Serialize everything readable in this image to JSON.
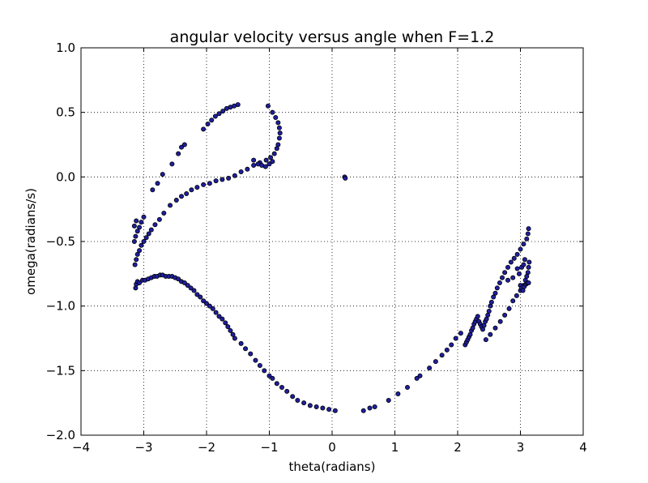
{
  "chart_data": {
    "type": "scatter",
    "title": "angular velocity versus angle when F=1.2",
    "xlabel": "theta(radians)",
    "ylabel": "omega(radians/s)",
    "xlim": [
      -4,
      4
    ],
    "ylim": [
      -2.0,
      1.0
    ],
    "xticks": [
      -4,
      -3,
      -2,
      -1,
      0,
      1,
      2,
      3,
      4
    ],
    "xtick_labels": [
      "−4",
      "−3",
      "−2",
      "−1",
      "0",
      "1",
      "2",
      "3",
      "4"
    ],
    "yticks": [
      -2.0,
      -1.5,
      -1.0,
      -0.5,
      0.0,
      0.5,
      1.0
    ],
    "ytick_labels": [
      "−2.0",
      "−1.5",
      "−1.0",
      "−0.5",
      "0.0",
      "0.5",
      "1.0"
    ],
    "grid": true,
    "grid_style": "dotted",
    "marker_color": "#1f1fa0",
    "marker_edge_color": "#000000",
    "points": [
      [
        -3.13,
        -0.86
      ],
      [
        -3.12,
        -0.83
      ],
      [
        -3.1,
        -0.81
      ],
      [
        -3.07,
        -0.82
      ],
      [
        -3.02,
        -0.8
      ],
      [
        -2.98,
        -0.8
      ],
      [
        -2.93,
        -0.79
      ],
      [
        -2.88,
        -0.78
      ],
      [
        -2.83,
        -0.77
      ],
      [
        -2.79,
        -0.77
      ],
      [
        -2.74,
        -0.76
      ],
      [
        -2.7,
        -0.76
      ],
      [
        -2.65,
        -0.77
      ],
      [
        -2.6,
        -0.77
      ],
      [
        -2.55,
        -0.77
      ],
      [
        -2.5,
        -0.78
      ],
      [
        -2.45,
        -0.79
      ],
      [
        -2.4,
        -0.81
      ],
      [
        -2.35,
        -0.82
      ],
      [
        -2.3,
        -0.84
      ],
      [
        -2.25,
        -0.86
      ],
      [
        -2.2,
        -0.88
      ],
      [
        -2.15,
        -0.91
      ],
      [
        -2.1,
        -0.93
      ],
      [
        -2.05,
        -0.96
      ],
      [
        -2.0,
        -0.98
      ],
      [
        -1.95,
        -1.0
      ],
      [
        -1.9,
        -1.02
      ],
      [
        -1.85,
        -1.05
      ],
      [
        -1.8,
        -1.08
      ],
      [
        -1.75,
        -1.1
      ],
      [
        -1.7,
        -1.13
      ],
      [
        -1.66,
        -1.16
      ],
      [
        -1.62,
        -1.19
      ],
      [
        -1.58,
        -1.22
      ],
      [
        -1.55,
        -1.25
      ],
      [
        -1.45,
        -1.29
      ],
      [
        -1.38,
        -1.33
      ],
      [
        -1.3,
        -1.37
      ],
      [
        -1.22,
        -1.42
      ],
      [
        -1.15,
        -1.46
      ],
      [
        -1.08,
        -1.5
      ],
      [
        -1.0,
        -1.54
      ],
      [
        -0.95,
        -1.56
      ],
      [
        -0.88,
        -1.6
      ],
      [
        -0.8,
        -1.63
      ],
      [
        -0.72,
        -1.66
      ],
      [
        -0.63,
        -1.7
      ],
      [
        -0.55,
        -1.73
      ],
      [
        -0.45,
        -1.75
      ],
      [
        -0.35,
        -1.77
      ],
      [
        -0.25,
        -1.78
      ],
      [
        -0.15,
        -1.79
      ],
      [
        -0.05,
        -1.8
      ],
      [
        0.05,
        -1.81
      ],
      [
        0.5,
        -1.81
      ],
      [
        0.6,
        -1.79
      ],
      [
        0.68,
        -1.78
      ],
      [
        0.9,
        -1.73
      ],
      [
        1.05,
        -1.68
      ],
      [
        1.2,
        -1.63
      ],
      [
        1.35,
        -1.56
      ],
      [
        1.4,
        -1.54
      ],
      [
        1.55,
        -1.48
      ],
      [
        1.65,
        -1.43
      ],
      [
        1.75,
        -1.38
      ],
      [
        1.83,
        -1.34
      ],
      [
        1.9,
        -1.3
      ],
      [
        1.97,
        -1.25
      ],
      [
        2.05,
        -1.21
      ],
      [
        2.12,
        -1.3
      ],
      [
        2.14,
        -1.28
      ],
      [
        2.16,
        -1.26
      ],
      [
        2.18,
        -1.24
      ],
      [
        2.2,
        -1.22
      ],
      [
        2.22,
        -1.19
      ],
      [
        2.24,
        -1.17
      ],
      [
        2.26,
        -1.14
      ],
      [
        2.28,
        -1.12
      ],
      [
        2.3,
        -1.1
      ],
      [
        2.32,
        -1.08
      ],
      [
        2.34,
        -1.12
      ],
      [
        2.36,
        -1.14
      ],
      [
        2.38,
        -1.16
      ],
      [
        2.4,
        -1.18
      ],
      [
        2.42,
        -1.15
      ],
      [
        2.44,
        -1.12
      ],
      [
        2.46,
        -1.1
      ],
      [
        2.48,
        -1.07
      ],
      [
        2.5,
        -1.04
      ],
      [
        2.52,
        -1.0
      ],
      [
        2.54,
        -0.97
      ],
      [
        2.57,
        -0.93
      ],
      [
        2.6,
        -0.9
      ],
      [
        2.63,
        -0.86
      ],
      [
        2.67,
        -0.82
      ],
      [
        2.71,
        -0.78
      ],
      [
        2.75,
        -0.74
      ],
      [
        2.8,
        -0.7
      ],
      [
        2.85,
        -0.66
      ],
      [
        2.9,
        -0.63
      ],
      [
        2.95,
        -0.6
      ],
      [
        3.0,
        -0.56
      ],
      [
        3.05,
        -0.52
      ],
      [
        3.1,
        -0.48
      ],
      [
        3.12,
        -0.44
      ],
      [
        3.13,
        -0.4
      ],
      [
        2.45,
        -1.26
      ],
      [
        2.52,
        -1.22
      ],
      [
        2.6,
        -1.17
      ],
      [
        2.68,
        -1.12
      ],
      [
        2.75,
        -1.07
      ],
      [
        2.82,
        -1.02
      ],
      [
        2.88,
        -0.96
      ],
      [
        2.94,
        -0.92
      ],
      [
        3.0,
        -0.88
      ],
      [
        3.05,
        -0.84
      ],
      [
        3.08,
        -0.8
      ],
      [
        3.1,
        -0.77
      ],
      [
        3.12,
        -0.74
      ],
      [
        3.13,
        -0.7
      ],
      [
        3.14,
        -0.66
      ],
      [
        3.0,
        -0.84
      ],
      [
        3.02,
        -0.86
      ],
      [
        3.04,
        -0.88
      ],
      [
        3.06,
        -0.85
      ],
      [
        3.09,
        -0.83
      ],
      [
        3.11,
        -0.82
      ],
      [
        3.13,
        -0.82
      ],
      [
        2.95,
        -0.71
      ],
      [
        2.98,
        -0.75
      ],
      [
        3.02,
        -0.7
      ],
      [
        3.05,
        -0.68
      ],
      [
        3.07,
        -0.64
      ],
      [
        2.88,
        -0.78
      ],
      [
        2.8,
        -0.8
      ],
      [
        -3.14,
        -0.68
      ],
      [
        -3.12,
        -0.64
      ],
      [
        -3.1,
        -0.6
      ],
      [
        -3.07,
        -0.57
      ],
      [
        -3.04,
        -0.53
      ],
      [
        -3.0,
        -0.5
      ],
      [
        -2.96,
        -0.47
      ],
      [
        -2.92,
        -0.44
      ],
      [
        -2.88,
        -0.41
      ],
      [
        -2.82,
        -0.37
      ],
      [
        -2.75,
        -0.33
      ],
      [
        -2.68,
        -0.28
      ],
      [
        -2.58,
        -0.22
      ],
      [
        -2.48,
        -0.18
      ],
      [
        -2.4,
        -0.15
      ],
      [
        -2.32,
        -0.13
      ],
      [
        -2.24,
        -0.1
      ],
      [
        -2.15,
        -0.08
      ],
      [
        -2.05,
        -0.06
      ],
      [
        -1.95,
        -0.05
      ],
      [
        -1.85,
        -0.03
      ],
      [
        -1.75,
        -0.02
      ],
      [
        -1.65,
        -0.01
      ],
      [
        -1.55,
        0.01
      ],
      [
        -1.45,
        0.04
      ],
      [
        -1.35,
        0.06
      ],
      [
        -1.25,
        0.09
      ],
      [
        -1.15,
        0.11
      ],
      [
        -1.05,
        0.13
      ],
      [
        -0.98,
        0.15
      ],
      [
        -0.92,
        0.18
      ],
      [
        -0.88,
        0.22
      ],
      [
        -0.86,
        0.25
      ],
      [
        -0.84,
        0.3
      ],
      [
        -0.83,
        0.34
      ],
      [
        -0.84,
        0.38
      ],
      [
        -0.86,
        0.42
      ],
      [
        -0.9,
        0.46
      ],
      [
        -0.95,
        0.5
      ],
      [
        -1.02,
        0.55
      ],
      [
        -3.15,
        -0.5
      ],
      [
        -3.13,
        -0.46
      ],
      [
        -3.1,
        -0.42
      ],
      [
        -3.07,
        -0.39
      ],
      [
        -3.04,
        -0.35
      ],
      [
        -3.0,
        -0.31
      ],
      [
        -3.15,
        -0.38
      ],
      [
        -3.12,
        -0.34
      ],
      [
        -2.86,
        -0.1
      ],
      [
        -2.78,
        -0.05
      ],
      [
        -2.7,
        0.02
      ],
      [
        -2.55,
        0.1
      ],
      [
        -2.45,
        0.18
      ],
      [
        -2.4,
        0.23
      ],
      [
        -2.35,
        0.25
      ],
      [
        -2.05,
        0.37
      ],
      [
        -1.98,
        0.41
      ],
      [
        -1.92,
        0.44
      ],
      [
        -1.86,
        0.47
      ],
      [
        -1.8,
        0.49
      ],
      [
        -1.74,
        0.51
      ],
      [
        -1.68,
        0.53
      ],
      [
        -1.62,
        0.54
      ],
      [
        -1.56,
        0.55
      ],
      [
        -1.5,
        0.56
      ],
      [
        -1.25,
        0.13
      ],
      [
        -1.18,
        0.1
      ],
      [
        -1.12,
        0.09
      ],
      [
        -1.06,
        0.08
      ],
      [
        -1.0,
        0.1
      ],
      [
        -0.95,
        0.12
      ],
      [
        0.2,
        0.0
      ],
      [
        0.21,
        -0.01
      ]
    ]
  }
}
